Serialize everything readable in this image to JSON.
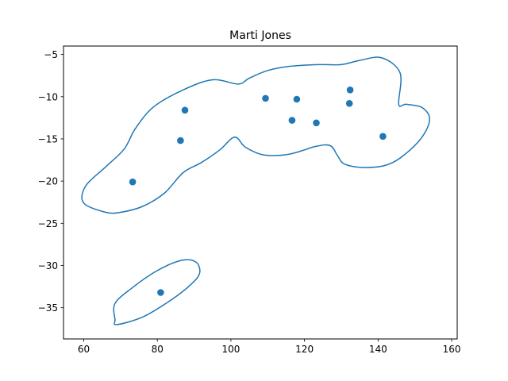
{
  "chart_data": {
    "type": "scatter",
    "title": "Marti Jones",
    "xlabel": "",
    "ylabel": "",
    "xlim": [
      54.5,
      161.5
    ],
    "ylim": [
      -38.7,
      -4.0
    ],
    "xticks": [
      60,
      80,
      100,
      120,
      140,
      160
    ],
    "yticks": [
      -5,
      -10,
      -15,
      -20,
      -25,
      -30,
      -35
    ],
    "grid": false,
    "colors": {
      "series": "#1f77b4",
      "axis": "#000000"
    },
    "series": [
      {
        "points": [
          {
            "x": 73.3,
            "y": -20.1
          },
          {
            "x": 86.3,
            "y": -15.2
          },
          {
            "x": 87.5,
            "y": -11.6
          },
          {
            "x": 109.4,
            "y": -10.2
          },
          {
            "x": 116.6,
            "y": -12.8
          },
          {
            "x": 117.9,
            "y": -10.3
          },
          {
            "x": 123.2,
            "y": -13.1
          },
          {
            "x": 132.2,
            "y": -10.8
          },
          {
            "x": 132.4,
            "y": -9.2
          },
          {
            "x": 141.3,
            "y": -14.7
          },
          {
            "x": 80.9,
            "y": -33.2
          }
        ]
      }
    ],
    "contours": [
      {
        "points": [
          [
            66,
            -23.7
          ],
          [
            60,
            -22.6
          ],
          [
            60.5,
            -20.6
          ],
          [
            66,
            -18.3
          ],
          [
            71,
            -16.2
          ],
          [
            74,
            -13.8
          ],
          [
            79,
            -11.2
          ],
          [
            87,
            -9.2
          ],
          [
            95,
            -8.0
          ],
          [
            102,
            -8.5
          ],
          [
            105,
            -7.8
          ],
          [
            110,
            -6.9
          ],
          [
            116,
            -6.4
          ],
          [
            124,
            -6.2
          ],
          [
            130,
            -6.2
          ],
          [
            135,
            -5.7
          ],
          [
            141,
            -5.4
          ],
          [
            146,
            -7.2
          ],
          [
            145.6,
            -10.9
          ],
          [
            147.6,
            -10.9
          ],
          [
            152,
            -11.3
          ],
          [
            154,
            -12.8
          ],
          [
            151,
            -15.3
          ],
          [
            144,
            -17.8
          ],
          [
            137,
            -18.4
          ],
          [
            131,
            -18.0
          ],
          [
            129,
            -17.0
          ],
          [
            127,
            -15.8
          ],
          [
            123,
            -15.9
          ],
          [
            116,
            -16.8
          ],
          [
            109,
            -16.9
          ],
          [
            104,
            -16.0
          ],
          [
            101,
            -14.8
          ],
          [
            97,
            -16.3
          ],
          [
            92,
            -17.8
          ],
          [
            87,
            -19.0
          ],
          [
            82,
            -21.4
          ],
          [
            76,
            -23.0
          ],
          [
            70,
            -23.7
          ]
        ]
      },
      {
        "points": [
          [
            69,
            -37.0
          ],
          [
            76,
            -36.1
          ],
          [
            83,
            -34.3
          ],
          [
            89,
            -32.3
          ],
          [
            91.5,
            -30.9
          ],
          [
            90.5,
            -29.6
          ],
          [
            86.5,
            -29.4
          ],
          [
            80,
            -30.6
          ],
          [
            73,
            -32.7
          ],
          [
            68.5,
            -34.5
          ],
          [
            68.5,
            -36.4
          ]
        ]
      }
    ]
  }
}
